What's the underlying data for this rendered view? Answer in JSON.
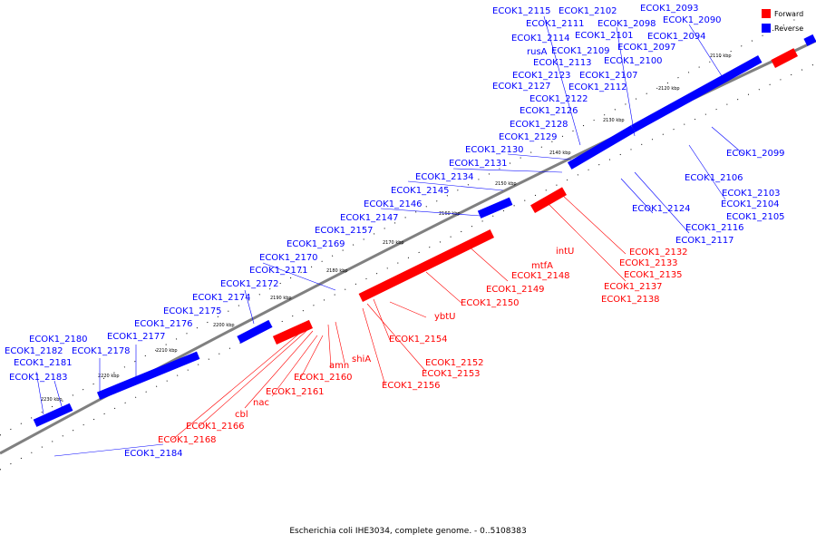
{
  "legend": {
    "forward": "Forward",
    "reverse": "Reverse"
  },
  "colors": {
    "forward": "#ff0000",
    "reverse": "#0000ff",
    "backbone": "#808080"
  },
  "caption": "Escherichia coli IHE3034, complete genome. - 0..5108383",
  "ticks": [
    "2110 kbp",
    "2120 kbp",
    "2130 kbp",
    "2140 kbp",
    "2150 kbp",
    "2160 kbp",
    "2170 kbp",
    "2180 kbp",
    "2190 kbp",
    "2200 kbp",
    "2210 kbp",
    "2220 kbp",
    "2230 kbp"
  ],
  "reverse_labels": [
    "ECOK1_2115",
    "ECOK1_2102",
    "ECOK1_2093",
    "ECOK1_2111",
    "ECOK1_2098",
    "ECOK1_2090",
    "ECOK1_2114",
    "ECOK1_2101",
    "ECOK1_2094",
    "rusA",
    "ECOK1_2109",
    "ECOK1_2097",
    "ECOK1_2113",
    "ECOK1_2100",
    "ECOK1_2123",
    "ECOK1_2107",
    "ECOK1_2127",
    "ECOK1_2112",
    "ECOK1_2122",
    "ECOK1_2126",
    "ECOK1_2128",
    "ECOK1_2129",
    "ECOK1_2130",
    "ECOK1_2099",
    "ECOK1_2131",
    "ECOK1_2134",
    "ECOK1_2106",
    "ECOK1_2145",
    "ECOK1_2103",
    "ECOK1_2146",
    "ECOK1_2124",
    "ECOK1_2104",
    "ECOK1_2147",
    "ECOK1_2105",
    "ECOK1_2157",
    "ECOK1_2116",
    "ECOK1_2169",
    "ECOK1_2117",
    "ECOK1_2170",
    "ECOK1_2171",
    "ECOK1_2172",
    "ECOK1_2174",
    "ECOK1_2175",
    "ECOK1_2176",
    "ECOK1_2177",
    "ECOK1_2180",
    "ECOK1_2182",
    "ECOK1_2178",
    "ECOK1_2181",
    "ECOK1_2183",
    "ECOK1_2184"
  ],
  "forward_labels": [
    "intU",
    "ECOK1_2132",
    "ECOK1_2133",
    "mtfA",
    "ECOK1_2135",
    "ECOK1_2148",
    "ECOK1_2137",
    "ECOK1_2149",
    "ECOK1_2138",
    "ECOK1_2150",
    "ybtU",
    "ECOK1_2154",
    "amn",
    "shiA",
    "ECOK1_2152",
    "ECOK1_2160",
    "ECOK1_2153",
    "ECOK1_2156",
    "ECOK1_2161",
    "nac",
    "cbl",
    "ECOK1_2166",
    "ECOK1_2168"
  ]
}
